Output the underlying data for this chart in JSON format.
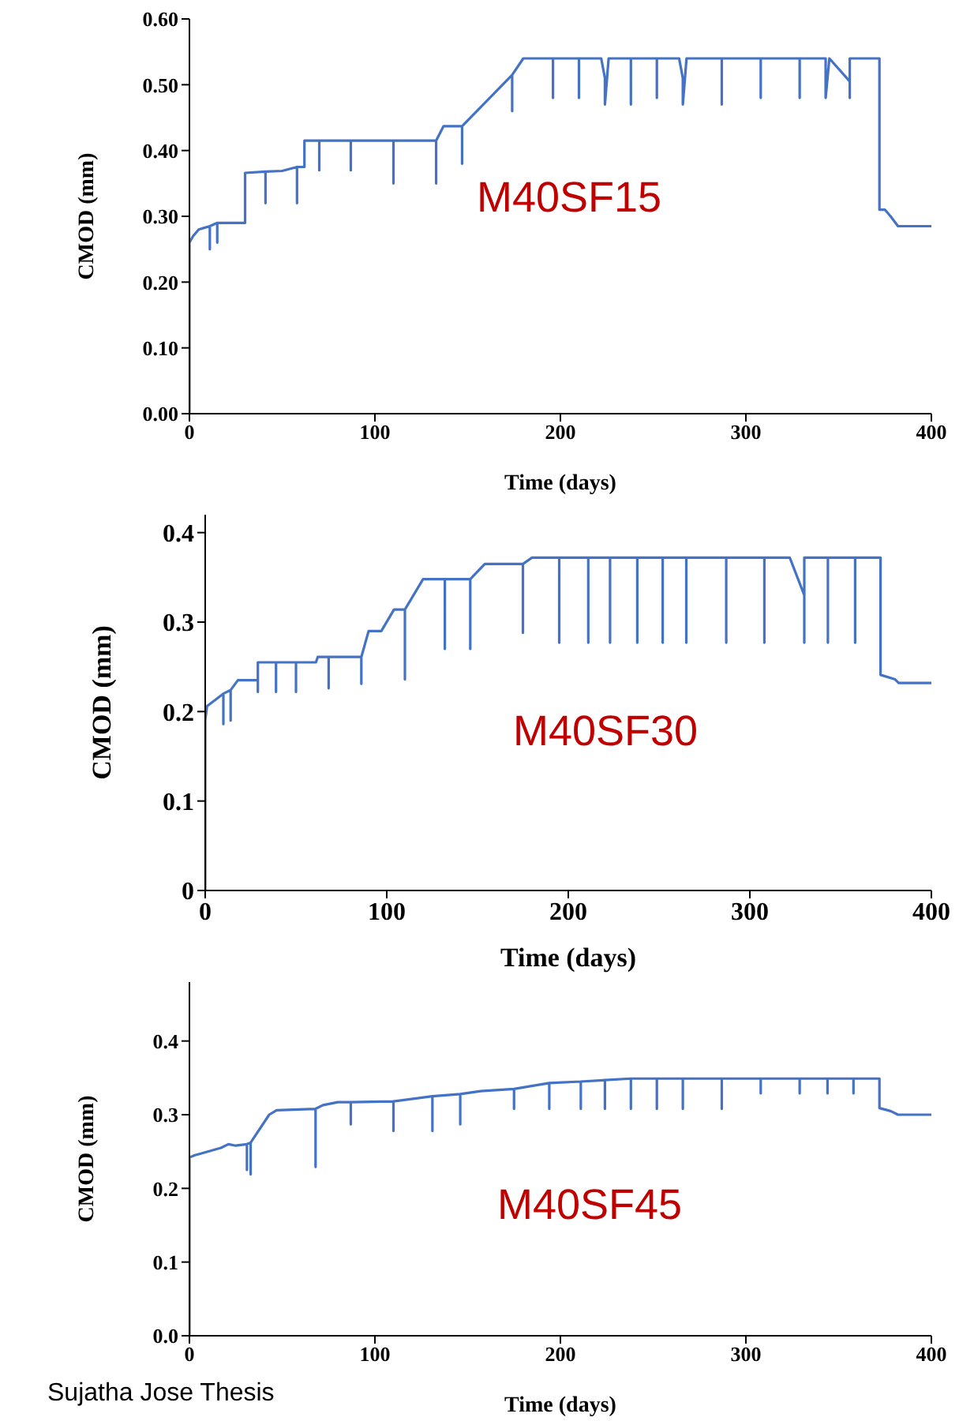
{
  "chart_data": [
    {
      "type": "line",
      "xlabel": "Time (days)",
      "ylabel": "CMOD (mm)",
      "annotations": [
        "M40SF15"
      ],
      "xlim": [
        0,
        400
      ],
      "xticks": [
        0,
        100,
        200,
        300,
        400
      ],
      "ylim": [
        0,
        0.6
      ],
      "yticks": [
        {
          "value": 0,
          "label": "0.00"
        },
        {
          "value": 0.1,
          "label": "0.10"
        },
        {
          "value": 0.2,
          "label": "0.20"
        },
        {
          "value": 0.3,
          "label": "0.30"
        },
        {
          "value": 0.4,
          "label": "0.40"
        },
        {
          "value": 0.5,
          "label": "0.50"
        },
        {
          "value": 0.6,
          "label": "0.60"
        }
      ],
      "grid": false,
      "legend": false,
      "marker": "none",
      "line_style": "solid",
      "series": [
        {
          "color": "#4472c4",
          "x": [
            0,
            0,
            2,
            5,
            11,
            11,
            11,
            15,
            15,
            15,
            30,
            30,
            41,
            41,
            41,
            50,
            58,
            58,
            58,
            62,
            62,
            70,
            70,
            70,
            87,
            87,
            87,
            110,
            110,
            110,
            133,
            133,
            133,
            137,
            147,
            147,
            147,
            174,
            174,
            174,
            180,
            196,
            196,
            196,
            210,
            210,
            210,
            222,
            224,
            224,
            226,
            238,
            238,
            238,
            252,
            252,
            252,
            264,
            266,
            266,
            268,
            287,
            287,
            287,
            308,
            308,
            308,
            329,
            329,
            329,
            343,
            343,
            345,
            356,
            356,
            356,
            372,
            372,
            375,
            378,
            382,
            400
          ],
          "values": [
            0,
            0.26,
            0.27,
            0.28,
            0.285,
            0.25,
            0.285,
            0.29,
            0.26,
            0.29,
            0.29,
            0.366,
            0.368,
            0.32,
            0.368,
            0.369,
            0.375,
            0.32,
            0.375,
            0.375,
            0.415,
            0.415,
            0.37,
            0.415,
            0.415,
            0.37,
            0.415,
            0.415,
            0.35,
            0.415,
            0.415,
            0.35,
            0.415,
            0.437,
            0.437,
            0.38,
            0.437,
            0.515,
            0.46,
            0.515,
            0.54,
            0.54,
            0.48,
            0.54,
            0.54,
            0.48,
            0.54,
            0.54,
            0.51,
            0.47,
            0.54,
            0.54,
            0.47,
            0.54,
            0.54,
            0.48,
            0.54,
            0.54,
            0.51,
            0.47,
            0.54,
            0.54,
            0.47,
            0.54,
            0.54,
            0.48,
            0.54,
            0.54,
            0.48,
            0.54,
            0.54,
            0.48,
            0.54,
            0.505,
            0.48,
            0.54,
            0.54,
            0.31,
            0.31,
            0.3,
            0.285,
            0.285
          ]
        }
      ]
    },
    {
      "type": "line",
      "xlabel": "Time (days)",
      "ylabel": "CMOD (mm)",
      "annotations": [
        "M40SF30"
      ],
      "xlim": [
        0,
        400
      ],
      "xticks": [
        0,
        100,
        200,
        300,
        400
      ],
      "ylim": [
        0,
        0.42
      ],
      "yticks": [
        0,
        0.1,
        0.2,
        0.3,
        0.4
      ],
      "grid": false,
      "legend": false,
      "marker": "none",
      "line_style": "solid",
      "series": [
        {
          "color": "#4472c4",
          "x": [
            0,
            0,
            1,
            10,
            10,
            10,
            14,
            14,
            14,
            18,
            29,
            29,
            29,
            39,
            39,
            39,
            50,
            50,
            50,
            61,
            62,
            68,
            68,
            68,
            86,
            86,
            86,
            90,
            97,
            104,
            110,
            110,
            110,
            120,
            132,
            132,
            132,
            146,
            146,
            146,
            154,
            175,
            175,
            175,
            180,
            195,
            195,
            195,
            211,
            211,
            211,
            223,
            223,
            223,
            238,
            238,
            238,
            252,
            252,
            252,
            265,
            265,
            265,
            287,
            287,
            287,
            308,
            308,
            308,
            322,
            330,
            330,
            330,
            343,
            343,
            343,
            358,
            358,
            358,
            372,
            372,
            380,
            382,
            400
          ],
          "values": [
            0,
            0.19,
            0.206,
            0.22,
            0.186,
            0.22,
            0.224,
            0.19,
            0.224,
            0.235,
            0.235,
            0.222,
            0.255,
            0.255,
            0.222,
            0.255,
            0.255,
            0.222,
            0.255,
            0.255,
            0.261,
            0.261,
            0.226,
            0.261,
            0.261,
            0.231,
            0.261,
            0.29,
            0.29,
            0.314,
            0.314,
            0.236,
            0.314,
            0.348,
            0.348,
            0.27,
            0.348,
            0.348,
            0.27,
            0.348,
            0.365,
            0.365,
            0.288,
            0.365,
            0.372,
            0.372,
            0.277,
            0.372,
            0.372,
            0.277,
            0.372,
            0.372,
            0.277,
            0.372,
            0.372,
            0.277,
            0.372,
            0.372,
            0.277,
            0.372,
            0.372,
            0.277,
            0.372,
            0.372,
            0.277,
            0.372,
            0.372,
            0.277,
            0.372,
            0.372,
            0.33,
            0.277,
            0.372,
            0.372,
            0.277,
            0.372,
            0.372,
            0.277,
            0.372,
            0.372,
            0.241,
            0.236,
            0.232,
            0.232
          ]
        }
      ]
    },
    {
      "type": "line",
      "xlabel": "Time (days)",
      "ylabel": "CMOD (mm)",
      "annotations": [
        "M40SF45",
        "Sujatha Jose Thesis"
      ],
      "xlim": [
        0,
        400
      ],
      "xticks": [
        0,
        100,
        200,
        300,
        400
      ],
      "ylim": [
        0,
        0.48
      ],
      "yticks": [
        {
          "value": 0,
          "label": "0.0"
        },
        0.1,
        0.2,
        0.3,
        0.4
      ],
      "grid": false,
      "legend": false,
      "marker": "none",
      "line_style": "solid",
      "series": [
        {
          "color": "#4472c4",
          "x": [
            0,
            0,
            3,
            17,
            21,
            25,
            31,
            31,
            31,
            33,
            33,
            33,
            43,
            47,
            68,
            68,
            68,
            72,
            80,
            87,
            87,
            87,
            110,
            110,
            110,
            131,
            131,
            131,
            146,
            146,
            146,
            157,
            175,
            175,
            175,
            194,
            194,
            194,
            211,
            211,
            211,
            224,
            224,
            224,
            238,
            238,
            238,
            252,
            252,
            252,
            266,
            266,
            266,
            287,
            287,
            287,
            308,
            308,
            308,
            329,
            329,
            329,
            344,
            344,
            344,
            358,
            358,
            358,
            372,
            372,
            378,
            382,
            400
          ],
          "values": [
            0,
            0.242,
            0.245,
            0.255,
            0.26,
            0.258,
            0.26,
            0.225,
            0.26,
            0.262,
            0.219,
            0.262,
            0.3,
            0.306,
            0.308,
            0.229,
            0.308,
            0.313,
            0.317,
            0.317,
            0.287,
            0.317,
            0.318,
            0.278,
            0.318,
            0.325,
            0.278,
            0.325,
            0.328,
            0.287,
            0.328,
            0.332,
            0.335,
            0.308,
            0.335,
            0.343,
            0.308,
            0.343,
            0.345,
            0.308,
            0.345,
            0.347,
            0.308,
            0.347,
            0.349,
            0.308,
            0.349,
            0.349,
            0.308,
            0.349,
            0.349,
            0.308,
            0.349,
            0.349,
            0.308,
            0.349,
            0.349,
            0.329,
            0.349,
            0.349,
            0.329,
            0.349,
            0.349,
            0.329,
            0.349,
            0.349,
            0.329,
            0.349,
            0.349,
            0.309,
            0.305,
            0.3,
            0.3
          ]
        }
      ]
    }
  ]
}
